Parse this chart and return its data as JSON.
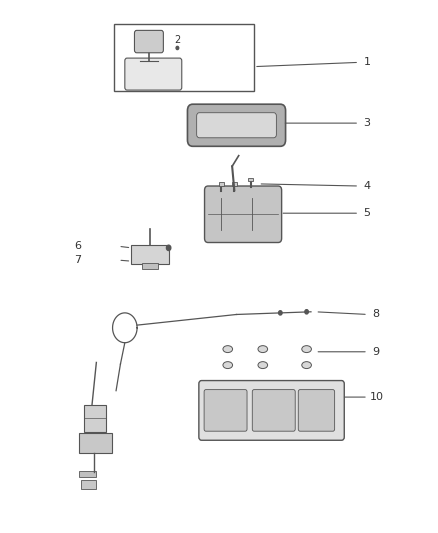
{
  "bg_color": "#ffffff",
  "line_color": "#555555",
  "text_color": "#333333",
  "fig_width": 4.38,
  "fig_height": 5.33,
  "dpi": 100
}
